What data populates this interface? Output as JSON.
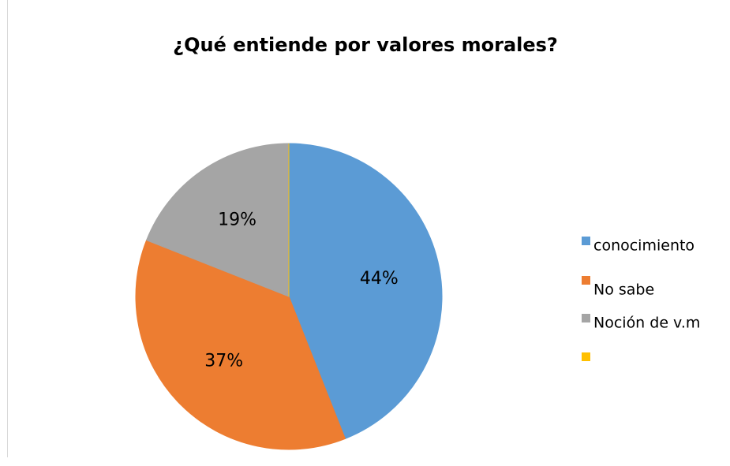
{
  "chart_data": {
    "type": "pie",
    "title": "¿Qué entiende por valores morales?",
    "categories": [
      "conocimiento",
      "No sabe",
      "Noción de v.m",
      null
    ],
    "values": [
      44,
      37,
      19,
      0
    ],
    "value_labels": [
      "44%",
      "37%",
      "19%",
      null
    ],
    "colors": [
      "#5b9bd5",
      "#ed7d31",
      "#a5a5a5",
      "#ffc000"
    ],
    "legend": "right"
  }
}
